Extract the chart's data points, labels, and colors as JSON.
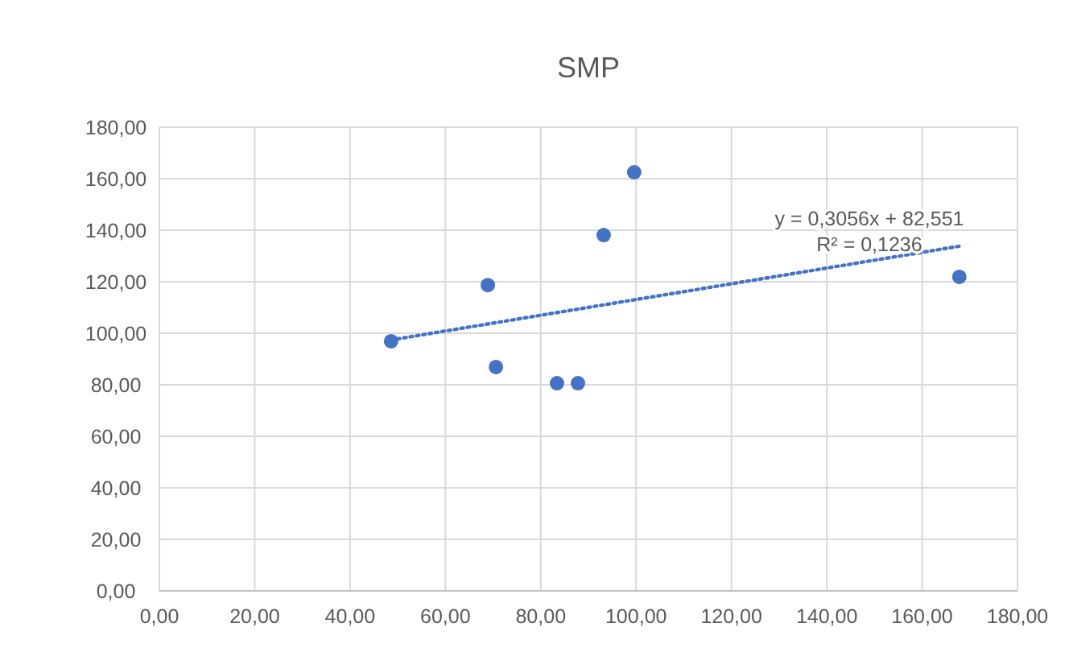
{
  "chart_data": {
    "type": "scatter",
    "title": "SMP",
    "marker": "circle",
    "grid": true,
    "xlim": [
      0,
      180
    ],
    "ylim": [
      0,
      180
    ],
    "xticks": [
      {
        "value": 0,
        "label": "0,00"
      },
      {
        "value": 20,
        "label": "20,00"
      },
      {
        "value": 40,
        "label": "40,00"
      },
      {
        "value": 60,
        "label": "60,00"
      },
      {
        "value": 80,
        "label": "80,00"
      },
      {
        "value": 100,
        "label": "100,00"
      },
      {
        "value": 120,
        "label": "120,00"
      },
      {
        "value": 140,
        "label": "140,00"
      },
      {
        "value": 160,
        "label": "160,00"
      },
      {
        "value": 180,
        "label": "180,00"
      }
    ],
    "yticks": [
      {
        "value": 0,
        "label": "0,00"
      },
      {
        "value": 20,
        "label": "20,00"
      },
      {
        "value": 40,
        "label": "40,00"
      },
      {
        "value": 60,
        "label": "60,00"
      },
      {
        "value": 80,
        "label": "80,00"
      },
      {
        "value": 100,
        "label": "100,00"
      },
      {
        "value": 120,
        "label": "120,00"
      },
      {
        "value": 140,
        "label": "140,00"
      },
      {
        "value": 160,
        "label": "160,00"
      },
      {
        "value": 180,
        "label": "180,00"
      }
    ],
    "series": [
      {
        "color": "#4472c4",
        "x": [
          48.6,
          68.9,
          70.6,
          83.4,
          87.8,
          93.2,
          99.6,
          167.8
        ],
        "values": [
          96.9,
          118.7,
          86.9,
          80.6,
          80.6,
          138.1,
          162.5,
          121.9
        ]
      },
      {
        "type": "line",
        "color": "#4472c4",
        "line_style": "dotted",
        "marker": "none",
        "x": [
          48.6,
          167.8
        ],
        "values": [
          97.4,
          133.8
        ]
      }
    ],
    "annotations": [
      "y = 0,3056x + 82,551",
      "R² = 0,1236"
    ]
  }
}
